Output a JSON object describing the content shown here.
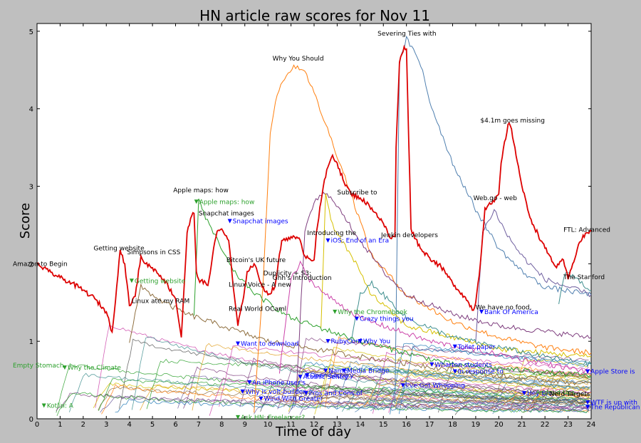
{
  "chart_data": {
    "type": "line",
    "title": "HN article raw scores for Nov 11",
    "xlabel": "Time of day",
    "ylabel": "Score",
    "xlim": [
      0,
      24
    ],
    "ylim": [
      0,
      5.1
    ],
    "xticks": [
      "0",
      "1",
      "2",
      "3",
      "4",
      "5",
      "6",
      "7",
      "8",
      "9",
      "10",
      "11",
      "12",
      "13",
      "14",
      "15",
      "16",
      "17",
      "18",
      "19",
      "20",
      "21",
      "22",
      "23",
      "24"
    ],
    "yticks": [
      "0",
      "1",
      "2",
      "3",
      "4",
      "5"
    ],
    "grid": false,
    "colors": {
      "highlight": "#dd0000",
      "palette": [
        "#1f77b4",
        "#2ca02c",
        "#ff7f0e",
        "#d6c000",
        "#7f3f7f",
        "#6f5f9f",
        "#3f8f8f",
        "#8f6f3f",
        "#cc44aa",
        "#555555",
        "#4f7faf",
        "#e0a020"
      ]
    },
    "highlight_series": {
      "name": "",
      "points": [
        [
          0,
          2.0
        ],
        [
          0.5,
          1.9
        ],
        [
          1,
          1.82
        ],
        [
          1.5,
          1.75
        ],
        [
          2,
          1.66
        ],
        [
          2.5,
          1.55
        ],
        [
          3,
          1.38
        ],
        [
          3.25,
          1.12
        ],
        [
          3.45,
          1.7
        ],
        [
          3.6,
          2.18
        ],
        [
          3.8,
          2.0
        ],
        [
          4.0,
          1.46
        ],
        [
          4.25,
          1.58
        ],
        [
          4.5,
          2.1
        ],
        [
          4.7,
          2.0
        ],
        [
          5,
          1.95
        ],
        [
          5.5,
          1.8
        ],
        [
          6.0,
          1.55
        ],
        [
          6.25,
          1.05
        ],
        [
          6.5,
          2.4
        ],
        [
          6.7,
          2.62
        ],
        [
          6.8,
          2.65
        ],
        [
          6.9,
          1.9
        ],
        [
          7.0,
          1.8
        ],
        [
          7.4,
          1.72
        ],
        [
          7.6,
          2.1
        ],
        [
          7.8,
          2.42
        ],
        [
          8.0,
          2.45
        ],
        [
          8.3,
          2.3
        ],
        [
          8.5,
          1.7
        ],
        [
          8.7,
          1.2
        ],
        [
          8.9,
          1.5
        ],
        [
          9.1,
          1.9
        ],
        [
          9.4,
          2.0
        ],
        [
          9.7,
          1.75
        ],
        [
          10.0,
          1.6
        ],
        [
          10.3,
          1.7
        ],
        [
          10.6,
          2.3
        ],
        [
          11.0,
          2.35
        ],
        [
          11.4,
          2.3
        ],
        [
          11.6,
          2.1
        ],
        [
          12.0,
          2.05
        ],
        [
          12.1,
          2.4
        ],
        [
          12.4,
          3.0
        ],
        [
          12.6,
          3.25
        ],
        [
          12.8,
          3.4
        ],
        [
          13.0,
          3.3
        ],
        [
          13.3,
          3.05
        ],
        [
          13.6,
          2.9
        ],
        [
          14.0,
          2.85
        ],
        [
          14.5,
          2.72
        ],
        [
          15.0,
          2.52
        ],
        [
          15.3,
          2.33
        ],
        [
          15.5,
          2.35
        ],
        [
          15.55,
          3.5
        ],
        [
          15.7,
          4.6
        ],
        [
          15.9,
          4.8
        ],
        [
          16.0,
          4.77
        ],
        [
          16.2,
          2.45
        ],
        [
          16.6,
          2.2
        ],
        [
          17.0,
          2.08
        ],
        [
          17.5,
          1.96
        ],
        [
          18.0,
          1.75
        ],
        [
          18.5,
          1.58
        ],
        [
          18.9,
          1.4
        ],
        [
          19.0,
          1.5
        ],
        [
          19.2,
          2.0
        ],
        [
          19.4,
          2.72
        ],
        [
          19.8,
          2.8
        ],
        [
          20.0,
          2.9
        ],
        [
          20.1,
          3.3
        ],
        [
          20.4,
          3.8
        ],
        [
          20.5,
          3.78
        ],
        [
          20.7,
          3.5
        ],
        [
          21.0,
          3.0
        ],
        [
          21.3,
          2.65
        ],
        [
          21.5,
          2.5
        ],
        [
          22.0,
          2.2
        ],
        [
          22.5,
          1.95
        ],
        [
          22.8,
          2.05
        ],
        [
          23.0,
          1.8
        ],
        [
          23.2,
          2.0
        ],
        [
          23.5,
          2.28
        ],
        [
          23.8,
          2.4
        ],
        [
          24,
          2.42
        ]
      ]
    },
    "rising_series": [
      {
        "color": "#ff7f0e",
        "points": [
          [
            9.4,
            0.1
          ],
          [
            9.8,
            1.8
          ],
          [
            10.1,
            3.7
          ],
          [
            10.4,
            4.2
          ],
          [
            10.8,
            4.45
          ],
          [
            11.2,
            4.55
          ],
          [
            11.6,
            4.5
          ],
          [
            12.0,
            4.2
          ],
          [
            12.5,
            3.8
          ],
          [
            13.0,
            3.4
          ],
          [
            13.6,
            2.9
          ],
          [
            14.5,
            2.1
          ],
          [
            16.0,
            1.6
          ],
          [
            18,
            1.25
          ],
          [
            20,
            1.05
          ],
          [
            22,
            0.92
          ],
          [
            24,
            0.85
          ]
        ]
      },
      {
        "color": "#4f7faf",
        "points": [
          [
            15.5,
            0.2
          ],
          [
            15.7,
            4.6
          ],
          [
            16.0,
            4.9
          ],
          [
            16.3,
            4.75
          ],
          [
            16.7,
            4.5
          ],
          [
            17.0,
            4.1
          ],
          [
            17.5,
            3.7
          ],
          [
            18.0,
            3.3
          ],
          [
            19.0,
            2.7
          ],
          [
            20.0,
            2.2
          ],
          [
            21.0,
            1.9
          ],
          [
            22.0,
            1.7
          ],
          [
            24,
            1.6
          ]
        ]
      },
      {
        "color": "#7f3f7f",
        "points": [
          [
            11.2,
            0.2
          ],
          [
            11.6,
            2.4
          ],
          [
            12.0,
            2.8
          ],
          [
            12.4,
            2.9
          ],
          [
            12.8,
            2.85
          ],
          [
            13.3,
            2.6
          ],
          [
            14.0,
            2.3
          ],
          [
            15.0,
            1.9
          ],
          [
            16.0,
            1.6
          ],
          [
            18.0,
            1.35
          ],
          [
            20,
            1.2
          ],
          [
            24,
            1.05
          ]
        ]
      },
      {
        "color": "#d6c000",
        "points": [
          [
            12.3,
            1.2
          ],
          [
            12.5,
            2.9
          ],
          [
            12.8,
            2.5
          ],
          [
            13.2,
            2.3
          ],
          [
            13.8,
            2.0
          ],
          [
            14.5,
            1.6
          ],
          [
            16,
            1.2
          ],
          [
            20,
            0.9
          ],
          [
            24,
            0.8
          ]
        ]
      },
      {
        "color": "#6f5f9f",
        "points": [
          [
            19.0,
            1.0
          ],
          [
            19.3,
            2.4
          ],
          [
            19.8,
            2.7
          ],
          [
            20.3,
            2.4
          ],
          [
            21.0,
            2.1
          ],
          [
            22.0,
            1.8
          ],
          [
            23.0,
            1.7
          ],
          [
            24,
            1.6
          ]
        ]
      },
      {
        "color": "#2ca02c",
        "points": [
          [
            6.8,
            1.3
          ],
          [
            7.0,
            2.85
          ],
          [
            7.3,
            2.6
          ],
          [
            7.8,
            2.3
          ],
          [
            8.5,
            1.9
          ],
          [
            9.5,
            1.6
          ],
          [
            11,
            1.3
          ],
          [
            14,
            1.0
          ],
          [
            18,
            0.7
          ],
          [
            24,
            0.55
          ]
        ]
      },
      {
        "color": "#3f8f8f",
        "points": [
          [
            22.6,
            1.5
          ],
          [
            22.9,
            1.9
          ],
          [
            23.2,
            1.85
          ],
          [
            23.6,
            1.75
          ],
          [
            24,
            1.65
          ]
        ]
      },
      {
        "color": "#8f6f3f",
        "points": [
          [
            4.0,
            1.0
          ],
          [
            4.5,
            1.7
          ],
          [
            5.0,
            1.6
          ],
          [
            5.5,
            1.5
          ],
          [
            6.5,
            1.35
          ],
          [
            8,
            1.2
          ],
          [
            10,
            1.0
          ],
          [
            14,
            0.8
          ],
          [
            20,
            0.55
          ],
          [
            24,
            0.45
          ]
        ]
      },
      {
        "color": "#3f8f8f",
        "points": [
          [
            13.6,
            1.0
          ],
          [
            14.0,
            1.6
          ],
          [
            14.5,
            1.75
          ],
          [
            15.0,
            1.6
          ],
          [
            16,
            1.3
          ],
          [
            18,
            1.05
          ],
          [
            22,
            0.8
          ],
          [
            24,
            0.7
          ]
        ]
      },
      {
        "color": "#cc44aa",
        "points": [
          [
            10.5,
            0.6
          ],
          [
            11.0,
            1.8
          ],
          [
            11.4,
            2.0
          ],
          [
            11.8,
            1.8
          ],
          [
            12.5,
            1.6
          ],
          [
            14,
            1.3
          ],
          [
            17,
            1.0
          ],
          [
            24,
            0.6
          ]
        ]
      }
    ],
    "background_lines": 60,
    "annotations": [
      {
        "x": -1.05,
        "y": 2.0,
        "text": "Amazon to Begin",
        "color": "#000000",
        "marker": false
      },
      {
        "x": 2.45,
        "y": 2.2,
        "text": "Getting website",
        "color": "#000000",
        "marker": false
      },
      {
        "x": 3.9,
        "y": 2.15,
        "text": "Simpsons in CSS",
        "color": "#000000",
        "marker": false
      },
      {
        "x": 4.1,
        "y": 1.78,
        "text": "Getting website",
        "color": "#2ca02c",
        "marker": true
      },
      {
        "x": 4.1,
        "y": 1.52,
        "text": "Linux ate my RAM",
        "color": "#000000",
        "marker": false
      },
      {
        "x": 5.9,
        "y": 2.95,
        "text": "Apple maps: how",
        "color": "#000000",
        "marker": false
      },
      {
        "x": 6.9,
        "y": 2.8,
        "text": "Apple maps: how",
        "color": "#2ca02c",
        "marker": true
      },
      {
        "x": 7.0,
        "y": 2.65,
        "text": "Snapchat images",
        "color": "#000000",
        "marker": false
      },
      {
        "x": 8.35,
        "y": 2.55,
        "text": "Snapchat images",
        "color": "#0000ff",
        "marker": true
      },
      {
        "x": 8.2,
        "y": 2.05,
        "text": "Bitcoin's UK future",
        "color": "#000000",
        "marker": false
      },
      {
        "x": 9.8,
        "y": 1.88,
        "text": "Duplicity + S3:",
        "color": "#000000",
        "marker": false
      },
      {
        "x": 10.2,
        "y": 1.82,
        "text": "Ghh's Introduction",
        "color": "#000000",
        "marker": false
      },
      {
        "x": 8.3,
        "y": 1.73,
        "text": "Linux Voice - A new",
        "color": "#000000",
        "marker": false
      },
      {
        "x": 8.3,
        "y": 1.42,
        "text": "Real World OCaml",
        "color": "#000000",
        "marker": false
      },
      {
        "x": 10.2,
        "y": 4.65,
        "text": "Why You Should",
        "color": "#000000",
        "marker": false
      },
      {
        "x": 11.7,
        "y": 2.4,
        "text": "Introducing the",
        "color": "#000000",
        "marker": false
      },
      {
        "x": 12.6,
        "y": 2.3,
        "text": "iOS: End of an Era",
        "color": "#0000ff",
        "marker": true
      },
      {
        "x": 13.0,
        "y": 2.92,
        "text": "Subscribe to",
        "color": "#000000",
        "marker": false
      },
      {
        "x": 14.9,
        "y": 2.37,
        "text": "Jenkin developers",
        "color": "#000000",
        "marker": false
      },
      {
        "x": 14.75,
        "y": 4.97,
        "text": "Severing Ties with",
        "color": "#000000",
        "marker": false
      },
      {
        "x": 19.2,
        "y": 3.85,
        "text": "$4.1m goes missing",
        "color": "#000000",
        "marker": false
      },
      {
        "x": 18.9,
        "y": 2.85,
        "text": "Web.go - web",
        "color": "#000000",
        "marker": false
      },
      {
        "x": 22.8,
        "y": 2.44,
        "text": "FTL: Advanced",
        "color": "#000000",
        "marker": false
      },
      {
        "x": 22.8,
        "y": 1.83,
        "text": "The Stanford",
        "color": "#000000",
        "marker": false
      },
      {
        "x": 19.0,
        "y": 1.44,
        "text": "We have no food,",
        "color": "#000000",
        "marker": false
      },
      {
        "x": 19.25,
        "y": 1.38,
        "text": "Bank Of America",
        "color": "#0000ff",
        "marker": true
      },
      {
        "x": 12.9,
        "y": 1.38,
        "text": "Why the Chromebook",
        "color": "#2ca02c",
        "marker": true
      },
      {
        "x": 13.85,
        "y": 1.29,
        "text": "Crazy things you",
        "color": "#0000ff",
        "marker": true
      },
      {
        "x": 8.7,
        "y": 0.97,
        "text": "Want to download",
        "color": "#0000ff",
        "marker": true
      },
      {
        "x": 12.6,
        "y": 1.0,
        "text": "RubyConf.",
        "color": "#0000ff",
        "marker": true
      },
      {
        "x": 14.0,
        "y": 1.0,
        "text": "Why You",
        "color": "#0000ff",
        "marker": true
      },
      {
        "x": 18.1,
        "y": 0.93,
        "text": "Toilet paper",
        "color": "#0000ff",
        "marker": true
      },
      {
        "x": 17.1,
        "y": 0.7,
        "text": "Wharton students",
        "color": "#0000ff",
        "marker": true
      },
      {
        "x": 18.1,
        "y": 0.61,
        "text": "In response to",
        "color": "#0000ff",
        "marker": true
      },
      {
        "x": 23.85,
        "y": 0.61,
        "text": "Apple Store is",
        "color": "#0000ff",
        "marker": true
      },
      {
        "x": -1.05,
        "y": 0.69,
        "text": "Empty Stomach",
        "color": "#2ca02c",
        "marker": false
      },
      {
        "x": 1.2,
        "y": 0.66,
        "text": "Why the Climate",
        "color": "#2ca02c",
        "marker": true
      },
      {
        "x": 12.5,
        "y": 0.62,
        "text": "Name",
        "color": "#0000ff",
        "marker": true
      },
      {
        "x": 13.3,
        "y": 0.62,
        "text": "Media Bridge",
        "color": "#0000ff",
        "marker": true
      },
      {
        "x": 11.7,
        "y": 0.56,
        "text": "Open Sorcery",
        "color": "#0000ff",
        "marker": true
      },
      {
        "x": 11.4,
        "y": 0.54,
        "text": "Atomic Sentry",
        "color": "#0000ff",
        "marker": true
      },
      {
        "x": 9.2,
        "y": 0.47,
        "text": "An iPhone user's",
        "color": "#0000ff",
        "marker": true
      },
      {
        "x": 8.9,
        "y": 0.35,
        "text": "Why is volt-builder",
        "color": "#0000ff",
        "marker": true
      },
      {
        "x": 9.7,
        "y": 0.26,
        "text": "Wind With Greater",
        "color": "#0000ff",
        "marker": true
      },
      {
        "x": 11.65,
        "y": 0.33,
        "text": "Pros and Cons of",
        "color": "#0000ff",
        "marker": true
      },
      {
        "x": 15.85,
        "y": 0.43,
        "text": "I've Got Whopping",
        "color": "#0000ff",
        "marker": true
      },
      {
        "x": 21.1,
        "y": 0.33,
        "text": "Hey Bro",
        "color": "#0000ff",
        "marker": true
      },
      {
        "x": 21.6,
        "y": 0.34,
        "text": "Android Ups",
        "color": "#2ca02c",
        "marker": false
      },
      {
        "x": 22.2,
        "y": 0.32,
        "text": "Nerd Targets",
        "color": "#000000",
        "marker": false
      },
      {
        "x": 23.85,
        "y": 0.21,
        "text": "WTF is up with",
        "color": "#0000ff",
        "marker": true
      },
      {
        "x": 23.85,
        "y": 0.15,
        "text": "The Republican",
        "color": "#0000ff",
        "marker": true
      },
      {
        "x": 0.3,
        "y": 0.17,
        "text": "Kotlin: A",
        "color": "#2ca02c",
        "marker": true
      },
      {
        "x": 8.7,
        "y": 0.02,
        "text": "Ask HN: Freelancer?",
        "color": "#2ca02c",
        "marker": true
      }
    ]
  }
}
